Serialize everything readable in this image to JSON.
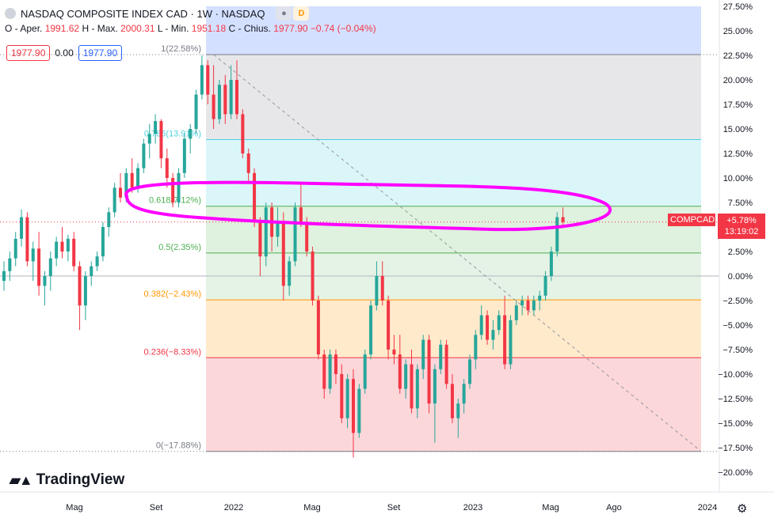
{
  "legend": {
    "title": "NASDAQ COMPOSITE INDEX CAD · 1W · NASDAQ",
    "badge_d": "D",
    "open_label": "O - Aper.",
    "open": "1991.62",
    "high_label": "H - Max.",
    "high": "2000.31",
    "low_label": "L - Min.",
    "low": "1951.18",
    "close_label": "C - Chius.",
    "close": "1977.90",
    "change": "−0.74 (−0.04%)"
  },
  "price_boxes": {
    "sell": "1977.90",
    "spread": "0.00",
    "buy": "1977.90"
  },
  "branding": {
    "name": "TradingView"
  },
  "last_price": {
    "symbol": "COMPCAD",
    "change": "+5.78%",
    "countdown": "13:19:02"
  },
  "colors": {
    "up": "#26a69a",
    "down": "#f23645",
    "marker": "#ff00ff"
  },
  "chart_data": {
    "type": "candlestick",
    "y_axis_unit": "percent change",
    "ylim": [
      -20.0,
      27.5
    ],
    "y_ticks": [
      "27.50%",
      "25.00%",
      "22.50%",
      "20.00%",
      "17.50%",
      "15.00%",
      "12.50%",
      "10.00%",
      "7.50%",
      "5.00%",
      "2.50%",
      "0.00%",
      "−2.50%",
      "−5.00%",
      "−7.50%",
      "−10.00%",
      "−12.50%",
      "−15.00%",
      "−17.50%",
      "−20.00%"
    ],
    "x_ticks": [
      "Mag",
      "Set",
      "2022",
      "Mag",
      "Set",
      "2023",
      "Mag",
      "Ago",
      "2024"
    ],
    "fibonacci": [
      {
        "label": "1(22.58%)",
        "value": 22.58,
        "color": "#787b86"
      },
      {
        "label": "0.786(13.91%)",
        "value": 13.91,
        "color": "#4dd0e1"
      },
      {
        "label": "0.618(7.12%)",
        "value": 7.12,
        "color": "#4caf50"
      },
      {
        "label": "0.5(2.35%)",
        "value": 2.35,
        "color": "#4caf50"
      },
      {
        "label": "0.382(−2.43%)",
        "value": -2.43,
        "color": "#ff9800"
      },
      {
        "label": "0.236(−8.33%)",
        "value": -8.33,
        "color": "#f23645"
      },
      {
        "label": "0(−17.88%)",
        "value": -17.88,
        "color": "#787b86"
      }
    ],
    "candles": [
      [
        -0.5,
        1.5,
        -1.5,
        0.5
      ],
      [
        0.5,
        2.5,
        -0.5,
        1.8
      ],
      [
        1.8,
        4.5,
        1.0,
        3.8
      ],
      [
        3.8,
        6.8,
        3.0,
        6.0
      ],
      [
        6.0,
        6.5,
        1.0,
        1.5
      ],
      [
        1.5,
        3.5,
        -0.5,
        2.8
      ],
      [
        2.8,
        4.5,
        -2.0,
        -1.0
      ],
      [
        -1.0,
        0.5,
        -3.0,
        0.0
      ],
      [
        0.0,
        2.5,
        -1.5,
        1.8
      ],
      [
        1.8,
        4.0,
        1.0,
        3.5
      ],
      [
        3.5,
        5.0,
        1.8,
        2.5
      ],
      [
        2.5,
        4.2,
        1.5,
        3.8
      ],
      [
        3.8,
        4.5,
        0.5,
        1.0
      ],
      [
        1.0,
        1.5,
        -5.5,
        -3.0
      ],
      [
        -3.0,
        0.5,
        -4.5,
        0.0
      ],
      [
        0.0,
        1.5,
        -1.0,
        1.0
      ],
      [
        1.0,
        2.5,
        0.5,
        2.0
      ],
      [
        2.0,
        5.5,
        1.5,
        5.0
      ],
      [
        5.0,
        7.0,
        4.0,
        6.5
      ],
      [
        6.5,
        9.5,
        6.0,
        9.0
      ],
      [
        9.0,
        10.5,
        7.5,
        8.0
      ],
      [
        8.0,
        11.0,
        7.5,
        10.5
      ],
      [
        10.5,
        12.0,
        8.5,
        9.0
      ],
      [
        9.0,
        11.5,
        8.5,
        11.0
      ],
      [
        11.0,
        14.0,
        10.5,
        13.5
      ],
      [
        13.5,
        15.5,
        12.0,
        14.5
      ],
      [
        14.5,
        16.5,
        13.5,
        15.8
      ],
      [
        15.8,
        16.0,
        11.0,
        12.0
      ],
      [
        12.0,
        13.0,
        9.0,
        10.0
      ],
      [
        10.0,
        10.5,
        7.0,
        7.5
      ],
      [
        7.5,
        11.0,
        7.0,
        10.5
      ],
      [
        10.5,
        14.5,
        10.0,
        14.0
      ],
      [
        14.0,
        15.5,
        12.5,
        15.0
      ],
      [
        15.0,
        19.0,
        14.5,
        18.5
      ],
      [
        18.5,
        22.5,
        18.0,
        21.5
      ],
      [
        21.5,
        22.0,
        17.5,
        18.5
      ],
      [
        18.5,
        21.5,
        15.0,
        16.0
      ],
      [
        16.0,
        20.0,
        15.5,
        19.5
      ],
      [
        19.5,
        20.5,
        15.5,
        16.5
      ],
      [
        16.5,
        21.5,
        16.0,
        20.0
      ],
      [
        20.0,
        22.0,
        16.0,
        16.5
      ],
      [
        16.5,
        17.0,
        12.0,
        12.5
      ],
      [
        12.5,
        13.0,
        9.5,
        10.5
      ],
      [
        10.5,
        11.0,
        5.0,
        5.5
      ],
      [
        5.5,
        6.0,
        0.0,
        2.0
      ],
      [
        2.0,
        7.5,
        1.0,
        7.0
      ],
      [
        7.0,
        7.5,
        2.5,
        4.0
      ],
      [
        4.0,
        7.0,
        3.0,
        5.5
      ],
      [
        5.5,
        6.5,
        -2.5,
        -1.0
      ],
      [
        -1.0,
        2.0,
        -2.0,
        1.5
      ],
      [
        1.5,
        7.5,
        1.0,
        7.0
      ],
      [
        7.0,
        9.5,
        5.0,
        5.5
      ],
      [
        5.5,
        6.0,
        2.0,
        2.5
      ],
      [
        2.5,
        3.0,
        -3.0,
        -2.5
      ],
      [
        -2.5,
        -2.0,
        -8.5,
        -8.0
      ],
      [
        -8.0,
        -7.5,
        -12.5,
        -11.5
      ],
      [
        -11.5,
        -7.5,
        -12.0,
        -8.0
      ],
      [
        -8.0,
        -7.5,
        -11.0,
        -10.0
      ],
      [
        -10.0,
        -9.0,
        -15.0,
        -14.5
      ],
      [
        -14.5,
        -10.0,
        -15.5,
        -10.5
      ],
      [
        -10.5,
        -9.5,
        -18.5,
        -16.0
      ],
      [
        -16.0,
        -11.0,
        -16.5,
        -11.5
      ],
      [
        -11.5,
        -7.5,
        -12.0,
        -8.0
      ],
      [
        -8.0,
        -2.5,
        -8.5,
        -3.0
      ],
      [
        -3.0,
        1.5,
        -3.5,
        0.0
      ],
      [
        0.0,
        1.5,
        -3.0,
        -2.5
      ],
      [
        -2.5,
        -2.0,
        -8.5,
        -7.5
      ],
      [
        -7.5,
        -6.0,
        -9.0,
        -8.0
      ],
      [
        -8.0,
        -6.0,
        -12.0,
        -11.5
      ],
      [
        -11.5,
        -8.5,
        -12.5,
        -9.0
      ],
      [
        -9.0,
        -7.5,
        -14.0,
        -13.5
      ],
      [
        -13.5,
        -9.0,
        -14.5,
        -9.5
      ],
      [
        -9.5,
        -6.0,
        -10.5,
        -6.5
      ],
      [
        -6.5,
        -6.0,
        -14.0,
        -13.0
      ],
      [
        -13.0,
        -9.0,
        -17.0,
        -9.5
      ],
      [
        -9.5,
        -6.5,
        -10.0,
        -7.0
      ],
      [
        -7.0,
        -6.5,
        -11.5,
        -11.0
      ],
      [
        -11.0,
        -10.0,
        -15.0,
        -14.5
      ],
      [
        -14.5,
        -12.5,
        -16.5,
        -13.0
      ],
      [
        -13.0,
        -10.5,
        -14.0,
        -11.0
      ],
      [
        -11.0,
        -8.0,
        -11.5,
        -8.5
      ],
      [
        -8.5,
        -5.5,
        -9.5,
        -6.0
      ],
      [
        -6.0,
        -3.0,
        -6.5,
        -4.0
      ],
      [
        -4.0,
        -3.5,
        -7.0,
        -6.5
      ],
      [
        -6.5,
        -4.5,
        -7.5,
        -5.5
      ],
      [
        -5.5,
        -3.5,
        -6.0,
        -4.0
      ],
      [
        -4.0,
        -2.0,
        -9.5,
        -9.0
      ],
      [
        -9.0,
        -4.0,
        -9.5,
        -4.5
      ],
      [
        -4.5,
        -2.5,
        -5.0,
        -3.0
      ],
      [
        -3.0,
        -2.0,
        -4.0,
        -2.5
      ],
      [
        -2.5,
        -2.0,
        -4.0,
        -3.5
      ],
      [
        -3.5,
        -2.0,
        -4.0,
        -2.5
      ],
      [
        -2.5,
        -1.5,
        -3.5,
        -2.0
      ],
      [
        -2.0,
        0.5,
        -2.5,
        0.0
      ],
      [
        0.0,
        3.0,
        -0.5,
        2.5
      ],
      [
        2.5,
        6.5,
        2.0,
        6.0
      ],
      [
        6.0,
        7.0,
        5.0,
        5.5
      ]
    ]
  }
}
